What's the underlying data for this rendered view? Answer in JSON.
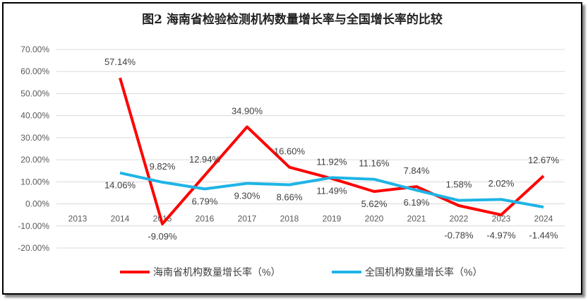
{
  "chart_data": {
    "type": "line",
    "title": "图2 海南省检验检测机构数量增长率与全国增长率的比较",
    "xlabel": "",
    "ylabel": "",
    "categories": [
      "2013",
      "2014",
      "2015",
      "2016",
      "2017",
      "2018",
      "2019",
      "2020",
      "2021",
      "2022",
      "2023",
      "2024"
    ],
    "yticks": [
      "-20.00%",
      "-10.00%",
      "0.00%",
      "10.00%",
      "20.00%",
      "30.00%",
      "40.00%",
      "50.00%",
      "60.00%",
      "70.00%"
    ],
    "ylim": [
      -20,
      70
    ],
    "grid": true,
    "legend_position": "bottom",
    "series": [
      {
        "name": "海南省机构数量增长率（%）",
        "color": "#ff0000",
        "values": [
          null,
          57.14,
          -9.09,
          12.94,
          34.9,
          16.6,
          11.49,
          5.62,
          7.84,
          -0.78,
          -4.97,
          12.67
        ],
        "labels": [
          "",
          "57.14%",
          "-9.09%",
          "12.94%",
          "34.90%",
          "16.60%",
          "11.49%",
          "5.62%",
          "7.84%",
          "-0.78%",
          "-4.97%",
          "12.67%"
        ]
      },
      {
        "name": "全国机构数量增长率（%）",
        "color": "#1eb4e6",
        "values": [
          null,
          14.06,
          9.82,
          6.79,
          9.3,
          8.66,
          11.92,
          11.16,
          6.19,
          1.58,
          2.02,
          -1.44
        ],
        "labels": [
          "",
          "14.06%",
          "9.82%",
          "6.79%",
          "9.30%",
          "8.66%",
          "11.92%",
          "11.16%",
          "6.19%",
          "1.58%",
          "2.02%",
          "-1.44%"
        ]
      }
    ]
  }
}
